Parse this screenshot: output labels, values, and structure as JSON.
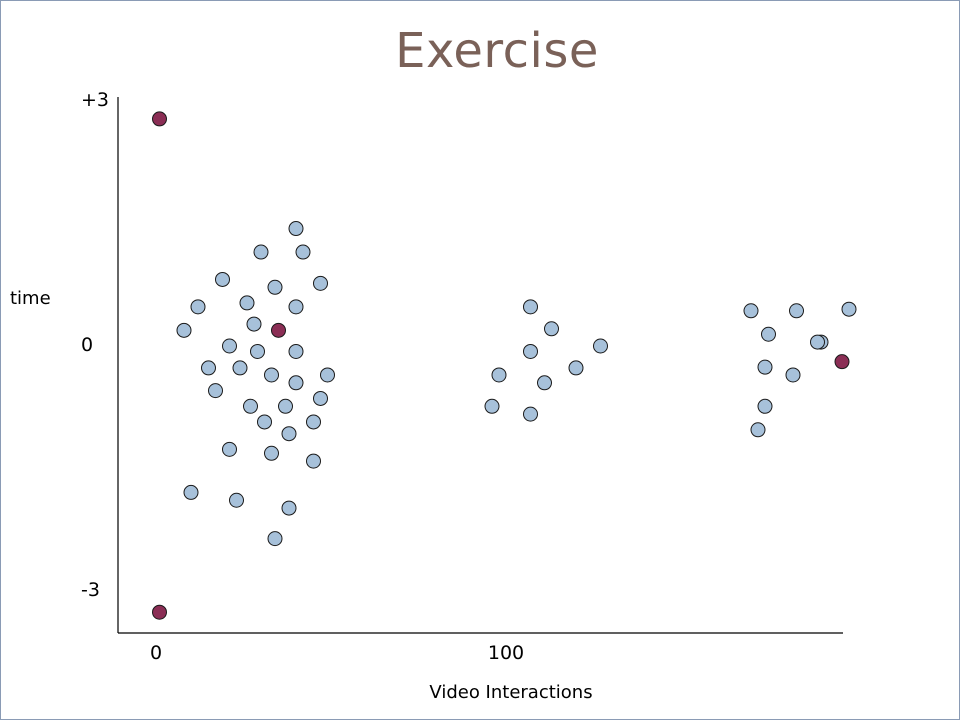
{
  "slide": {
    "title": "Exercise"
  },
  "chart_data": {
    "type": "scatter",
    "title": "Exercise",
    "xlabel": "Video Interactions",
    "ylabel": "time",
    "x_ticks": [
      {
        "value": 0,
        "label": "0"
      },
      {
        "value": 100,
        "label": "100"
      }
    ],
    "y_ticks": [
      {
        "value": 3,
        "label": "+3"
      },
      {
        "value": 0,
        "label": "0"
      },
      {
        "value": -3,
        "label": "-3"
      }
    ],
    "xlim": [
      -11,
      195
    ],
    "ylim": [
      -3.5,
      3.1
    ],
    "grid": false,
    "series": [
      {
        "color": "#a7c1da",
        "points": [
          [
            40,
            1.5
          ],
          [
            30,
            1.2
          ],
          [
            42,
            1.2
          ],
          [
            19,
            0.85
          ],
          [
            34,
            0.75
          ],
          [
            47,
            0.8
          ],
          [
            12,
            0.5
          ],
          [
            26,
            0.55
          ],
          [
            40,
            0.5
          ],
          [
            8,
            0.2
          ],
          [
            28,
            0.28
          ],
          [
            21,
            0.0
          ],
          [
            29,
            -0.07
          ],
          [
            40,
            -0.07
          ],
          [
            15,
            -0.28
          ],
          [
            24,
            -0.28
          ],
          [
            33,
            -0.37
          ],
          [
            40,
            -0.47
          ],
          [
            49,
            -0.37
          ],
          [
            17,
            -0.57
          ],
          [
            27,
            -0.77
          ],
          [
            37,
            -0.77
          ],
          [
            47,
            -0.67
          ],
          [
            31,
            -0.97
          ],
          [
            38,
            -1.12
          ],
          [
            45,
            -0.97
          ],
          [
            21,
            -1.32
          ],
          [
            33,
            -1.37
          ],
          [
            45,
            -1.47
          ],
          [
            10,
            -1.87
          ],
          [
            23,
            -1.97
          ],
          [
            38,
            -2.07
          ],
          [
            34,
            -2.46
          ],
          [
            107,
            0.5
          ],
          [
            113,
            0.22
          ],
          [
            107,
            -0.07
          ],
          [
            127,
            0.0
          ],
          [
            98,
            -0.37
          ],
          [
            120,
            -0.28
          ],
          [
            111,
            -0.47
          ],
          [
            96,
            -0.77
          ],
          [
            107,
            -0.87
          ],
          [
            170,
            0.45
          ],
          [
            183,
            0.45
          ],
          [
            198,
            0.47
          ],
          [
            175,
            0.15
          ],
          [
            190,
            0.05
          ],
          [
            189,
            0.05
          ],
          [
            174,
            -0.27
          ],
          [
            182,
            -0.37
          ],
          [
            174,
            -0.77
          ],
          [
            172,
            -1.07
          ]
        ]
      },
      {
        "color": "#8b2e55",
        "points": [
          [
            1,
            2.9
          ],
          [
            1,
            -3.4
          ],
          [
            35,
            0.2
          ],
          [
            196,
            -0.2
          ]
        ]
      }
    ]
  }
}
